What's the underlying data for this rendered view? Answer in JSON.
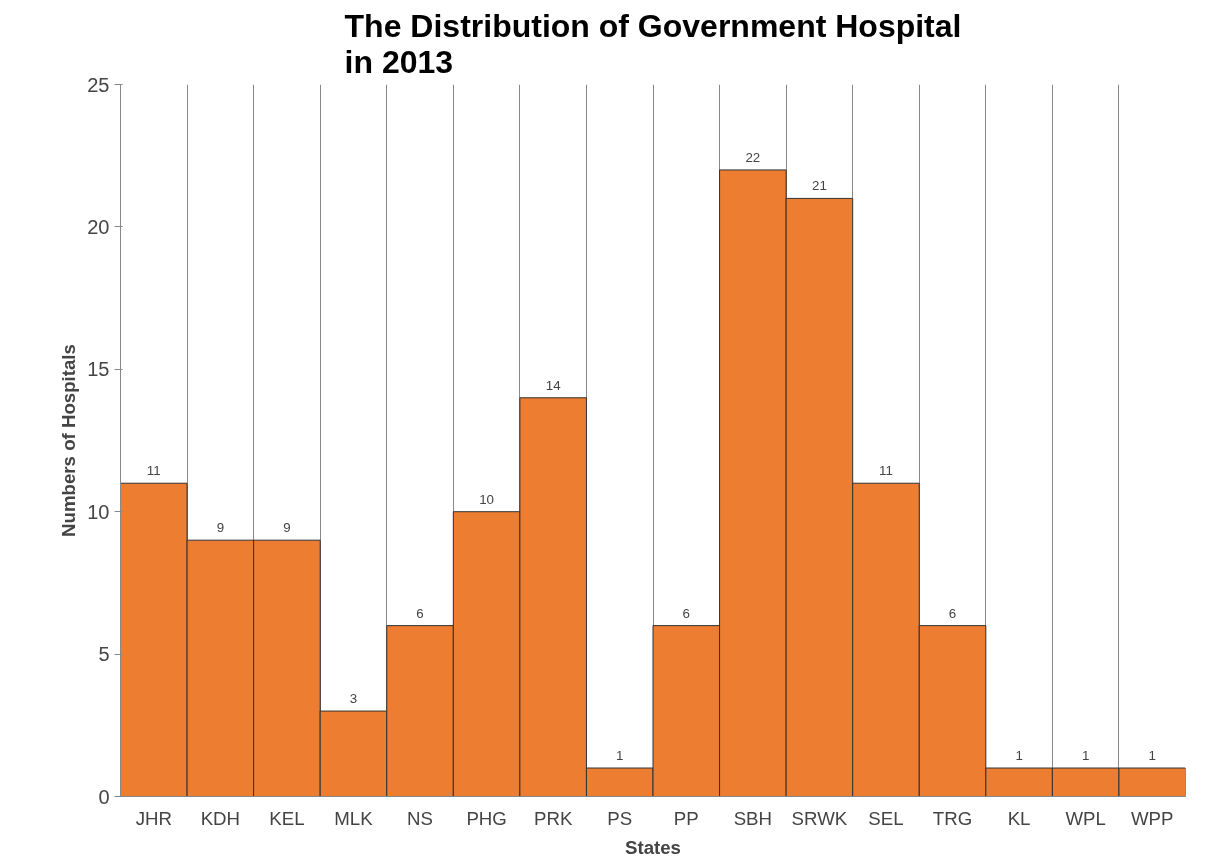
{
  "chart_data": {
    "type": "bar",
    "title": "The Distribution of Government Hospital\nin 2013",
    "xlabel": "States",
    "ylabel": "Numbers of Hospitals",
    "categories": [
      "JHR",
      "KDH",
      "KEL",
      "MLK",
      "NS",
      "PHG",
      "PRK",
      "PS",
      "PP",
      "SBH",
      "SRWK",
      "SEL",
      "TRG",
      "KL",
      "WPL",
      "WPP"
    ],
    "values": [
      11,
      9,
      9,
      3,
      6,
      10,
      14,
      1,
      6,
      22,
      21,
      11,
      6,
      1,
      1,
      1
    ],
    "color": "#ed7d31",
    "ylim": [
      0,
      25
    ],
    "yticks": [
      0,
      5,
      10,
      15,
      20,
      25
    ],
    "grid": "x",
    "data_labels": true
  }
}
